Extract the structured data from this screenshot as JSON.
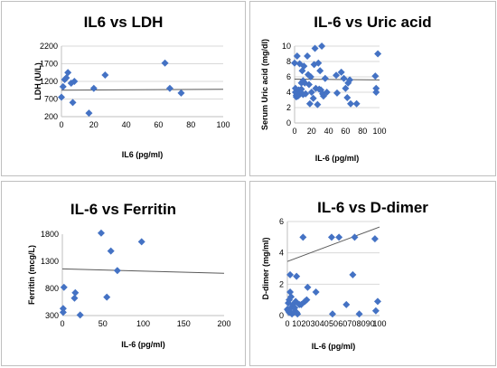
{
  "chart_data": [
    {
      "type": "scatter",
      "title": "IL6 vs LDH",
      "xlabel": "IL6 (pg/ml)",
      "ylabel": "LDH (U/L)",
      "xlim": [
        0,
        100
      ],
      "ylim": [
        200,
        2200
      ],
      "xticks": [
        0,
        20,
        40,
        60,
        80,
        100
      ],
      "yticks": [
        200,
        700,
        1200,
        1700,
        2200
      ],
      "grid": "horizontal",
      "trendline": [
        [
          0,
          950
        ],
        [
          100,
          975
        ]
      ],
      "points": [
        [
          0,
          750
        ],
        [
          1,
          1050
        ],
        [
          2,
          1250
        ],
        [
          3,
          1300
        ],
        [
          4,
          1450
        ],
        [
          6,
          1150
        ],
        [
          7,
          600
        ],
        [
          8,
          1200
        ],
        [
          17,
          300
        ],
        [
          20,
          1000
        ],
        [
          27,
          1380
        ],
        [
          64,
          1720
        ],
        [
          67,
          1000
        ],
        [
          74,
          870
        ]
      ]
    },
    {
      "type": "scatter",
      "title": "IL-6 vs Uric acid",
      "xlabel": "IL-6 (pg/ml)",
      "ylabel": "Serum Uric acid (mg/dl)",
      "xlim": [
        0,
        100
      ],
      "ylim": [
        0,
        10
      ],
      "xticks": [
        0,
        20,
        40,
        60,
        80,
        100
      ],
      "yticks": [
        0,
        2,
        4,
        6,
        8,
        10
      ],
      "grid": "horizontal",
      "trendline": [
        [
          0,
          5.7
        ],
        [
          100,
          5.6
        ]
      ],
      "points": [
        [
          0,
          7.8
        ],
        [
          1,
          4.5
        ],
        [
          1,
          4.0
        ],
        [
          2,
          3.6
        ],
        [
          2,
          3.4
        ],
        [
          3,
          8.7
        ],
        [
          3,
          3.9
        ],
        [
          4,
          4.2
        ],
        [
          4,
          3.5
        ],
        [
          5,
          4.3
        ],
        [
          6,
          7.7
        ],
        [
          6,
          3.7
        ],
        [
          7,
          4.0
        ],
        [
          8,
          5.2
        ],
        [
          8,
          4.4
        ],
        [
          9,
          6.8
        ],
        [
          10,
          5.5
        ],
        [
          10,
          3.7
        ],
        [
          11,
          7.4
        ],
        [
          12,
          5.2
        ],
        [
          13,
          3.8
        ],
        [
          15,
          8.7
        ],
        [
          16,
          6.3
        ],
        [
          17,
          5.0
        ],
        [
          18,
          2.5
        ],
        [
          19,
          6.0
        ],
        [
          20,
          4.0
        ],
        [
          22,
          3.2
        ],
        [
          23,
          7.6
        ],
        [
          24,
          9.7
        ],
        [
          25,
          4.5
        ],
        [
          27,
          2.4
        ],
        [
          28,
          7.8
        ],
        [
          29,
          4.4
        ],
        [
          30,
          6.8
        ],
        [
          31,
          4.3
        ],
        [
          32,
          10.0
        ],
        [
          33,
          3.8
        ],
        [
          34,
          3.5
        ],
        [
          36,
          5.8
        ],
        [
          38,
          4.0
        ],
        [
          49,
          6.2
        ],
        [
          50,
          3.9
        ],
        [
          55,
          6.6
        ],
        [
          58,
          5.8
        ],
        [
          60,
          4.5
        ],
        [
          62,
          3.3
        ],
        [
          63,
          5.2
        ],
        [
          65,
          5.6
        ],
        [
          66,
          2.5
        ],
        [
          73,
          2.5
        ],
        [
          95,
          6.1
        ],
        [
          96,
          4.5
        ],
        [
          96,
          4.0
        ],
        [
          98,
          9.0
        ]
      ]
    },
    {
      "type": "scatter",
      "title": "IL-6 vs Ferritin",
      "xlabel": "IL-6 (pg/ml)",
      "ylabel": "Ferritin (mcg/L)",
      "xlim": [
        0,
        200
      ],
      "ylim": [
        300,
        1800
      ],
      "xticks": [
        0,
        50,
        100,
        150,
        200
      ],
      "yticks": [
        300,
        800,
        1300,
        1800
      ],
      "grid": "none",
      "trendline": [
        [
          0,
          1160
        ],
        [
          200,
          1080
        ]
      ],
      "points": [
        [
          1,
          430
        ],
        [
          1,
          360
        ],
        [
          2,
          820
        ],
        [
          15,
          620
        ],
        [
          16,
          720
        ],
        [
          22,
          310
        ],
        [
          48,
          1820
        ],
        [
          55,
          640
        ],
        [
          60,
          1490
        ],
        [
          68,
          1130
        ],
        [
          98,
          1660
        ]
      ]
    },
    {
      "type": "scatter",
      "title": "IL-6 vs D-dimer",
      "xlabel": "IL-6 (pg/ml)",
      "ylabel": "D-dimer (mg/ml)",
      "xlim": [
        0,
        100
      ],
      "ylim": [
        0,
        6
      ],
      "xticks": [
        0,
        10,
        20,
        30,
        40,
        50,
        60,
        70,
        80,
        90,
        100
      ],
      "yticks": [
        0,
        2,
        4,
        6
      ],
      "grid": "horizontal",
      "trendline": [
        [
          0,
          3.45
        ],
        [
          100,
          5.65
        ]
      ],
      "points": [
        [
          0,
          0.4
        ],
        [
          1,
          0.3
        ],
        [
          1,
          0.8
        ],
        [
          2,
          1.0
        ],
        [
          2,
          0.2
        ],
        [
          3,
          1.5
        ],
        [
          3,
          2.6
        ],
        [
          4,
          1.2
        ],
        [
          4,
          0.5
        ],
        [
          5,
          0.1
        ],
        [
          6,
          0.7
        ],
        [
          7,
          0.2
        ],
        [
          8,
          0.5
        ],
        [
          9,
          0.9
        ],
        [
          10,
          0.2
        ],
        [
          10,
          2.5
        ],
        [
          11,
          0.1
        ],
        [
          13,
          0.7
        ],
        [
          15,
          0.7
        ],
        [
          17,
          5.0
        ],
        [
          19,
          0.9
        ],
        [
          21,
          1.0
        ],
        [
          22,
          1.8
        ],
        [
          31,
          1.5
        ],
        [
          48,
          5.0
        ],
        [
          49,
          0.1
        ],
        [
          56,
          5.0
        ],
        [
          64,
          0.7
        ],
        [
          71,
          2.6
        ],
        [
          73,
          5.0
        ],
        [
          78,
          0.1
        ],
        [
          95,
          4.9
        ],
        [
          96,
          0.3
        ],
        [
          98,
          0.9
        ]
      ]
    }
  ]
}
